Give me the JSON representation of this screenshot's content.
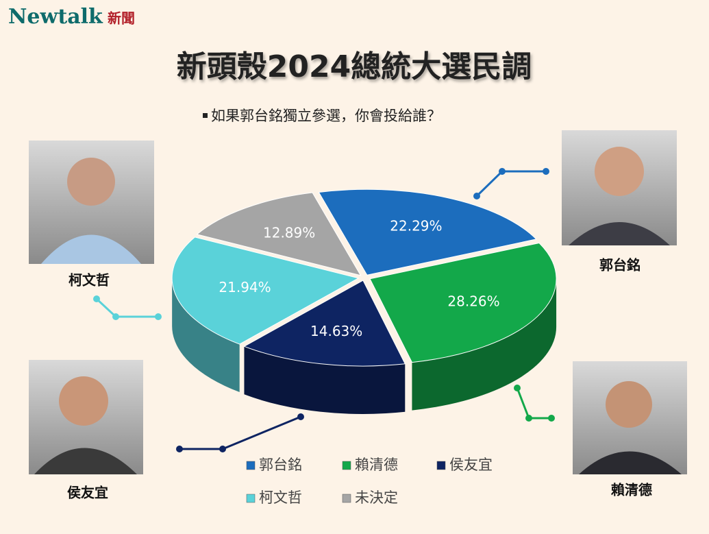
{
  "brand": {
    "name": "Newtalk",
    "suffix": "新聞"
  },
  "chart_data": {
    "type": "pie",
    "title": "新頭殼2024總統大選民調",
    "subtitle": "如果郭台銘獨立參選，你會投給誰？",
    "categories": [
      "郭台銘",
      "賴清德",
      "侯友宜",
      "柯文哲",
      "未決定"
    ],
    "values": [
      22.29,
      28.26,
      14.63,
      21.94,
      12.89
    ],
    "value_labels": [
      "22.29%",
      "28.26%",
      "14.63%",
      "21.94%",
      "12.89%"
    ],
    "colors": [
      "#1c6dbd",
      "#13a84a",
      "#0e2462",
      "#5ad2d9",
      "#a5a5a5"
    ],
    "legend": "bottom"
  }
}
